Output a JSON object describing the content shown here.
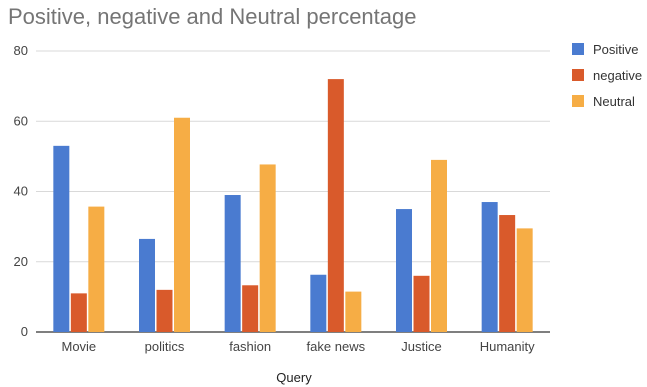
{
  "chart_data": {
    "type": "bar",
    "title": "Positive, negative and Neutral percentage",
    "xlabel": "Query",
    "ylabel": "",
    "ylim": [
      0,
      80
    ],
    "yticks": [
      0,
      20,
      40,
      60,
      80
    ],
    "grid": true,
    "legend_position": "right",
    "categories": [
      "Movie",
      "politics",
      "fashion",
      "fake news",
      "Justice",
      "Humanity"
    ],
    "series": [
      {
        "name": "Positive",
        "color": "#4a7bd0",
        "values": [
          53,
          26.5,
          39,
          16.3,
          35,
          37
        ]
      },
      {
        "name": "negative",
        "color": "#d95a2b",
        "values": [
          11,
          12,
          13.3,
          72,
          16,
          33.3
        ]
      },
      {
        "name": "Neutral",
        "color": "#f6ad45",
        "values": [
          35.7,
          61,
          47.7,
          11.5,
          49,
          29.5
        ]
      }
    ]
  }
}
